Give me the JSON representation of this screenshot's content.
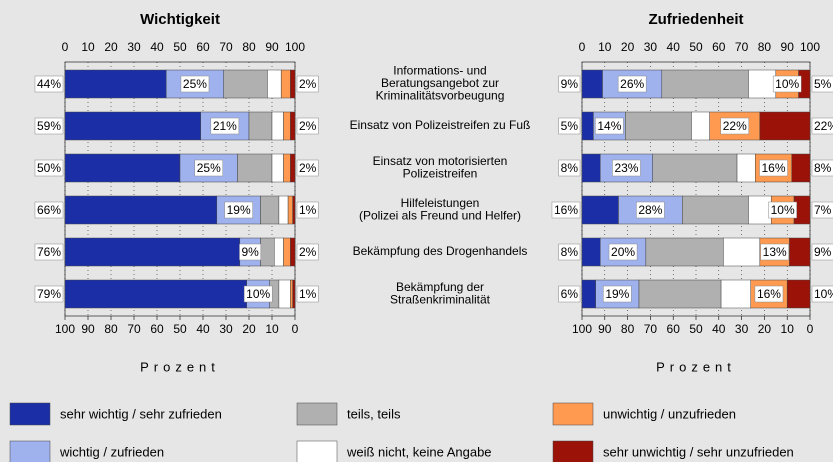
{
  "chart_data": [
    {
      "type": "bar",
      "title": "Wichtigkeit",
      "xlabel": "Prozent",
      "categories": [
        "Informations- und\nBeratungsangebot zur\nKriminalitätsvorbeugung",
        "Einsatz von Polizeistreifen zu Fuß",
        "Einsatz von motorisierten\nPolizeistreifen",
        "Hilfeleistungen\n(Polizei als Freund und Helfer)",
        "Bekämpfung des Drogenhandels",
        "Bekämpfung der\nStraßenkriminalität"
      ],
      "xlim": [
        0,
        100
      ],
      "xticks": [
        0,
        10,
        20,
        30,
        40,
        50,
        60,
        70,
        80,
        90,
        100
      ],
      "xticks_bottom": [
        {
          "value": 0,
          "label": "100"
        },
        {
          "value": 10,
          "label": "90"
        },
        {
          "value": 20,
          "label": "80"
        },
        {
          "value": 30,
          "label": "70"
        },
        {
          "value": 40,
          "label": "60"
        },
        {
          "value": 50,
          "label": "50"
        },
        {
          "value": 60,
          "label": "40"
        },
        {
          "value": 70,
          "label": "30"
        },
        {
          "value": 80,
          "label": "20"
        },
        {
          "value": 90,
          "label": "10"
        },
        {
          "value": 100,
          "label": "0"
        }
      ],
      "grid": true,
      "series": [
        {
          "name": "sehr wichtig / sehr zufrieden",
          "color": "#1b2ea6",
          "values": [
            44,
            59,
            50,
            66,
            76,
            79
          ],
          "value_labels": [
            "44%",
            "59%",
            "50%",
            "66%",
            "76%",
            "79%"
          ]
        },
        {
          "name": "wichtig / zufrieden",
          "color": "#9fb2ee",
          "values": [
            25,
            21,
            25,
            19,
            9,
            10
          ],
          "value_labels": [
            "25%",
            "21%",
            "25%",
            "19%",
            "9%",
            "10%"
          ]
        },
        {
          "name": "teils, teils",
          "color": "#b0b0b0",
          "values": [
            19,
            10,
            15,
            8,
            6,
            4
          ]
        },
        {
          "name": "weiß nicht, keine Angabe",
          "color": "#ffffff",
          "values": [
            6,
            5,
            5,
            4,
            4,
            5
          ]
        },
        {
          "name": "unwichtig / unzufrieden",
          "color": "#ff9a50",
          "values": [
            4,
            3,
            3,
            2,
            3,
            1
          ]
        },
        {
          "name": "sehr unwichtig / sehr unzufrieden",
          "color": "#9a1208",
          "values": [
            2,
            2,
            2,
            1,
            2,
            1
          ],
          "value_labels": [
            "2%",
            "2%",
            "2%",
            "1%",
            "2%",
            "1%"
          ]
        }
      ]
    },
    {
      "type": "bar",
      "title": "Zufriedenheit",
      "xlabel": "Prozent",
      "xlim": [
        0,
        100
      ],
      "xticks": [
        0,
        10,
        20,
        30,
        40,
        50,
        60,
        70,
        80,
        90,
        100
      ],
      "xticks_bottom": [
        {
          "value": 0,
          "label": "100"
        },
        {
          "value": 10,
          "label": "90"
        },
        {
          "value": 20,
          "label": "80"
        },
        {
          "value": 30,
          "label": "70"
        },
        {
          "value": 40,
          "label": "60"
        },
        {
          "value": 50,
          "label": "50"
        },
        {
          "value": 60,
          "label": "40"
        },
        {
          "value": 70,
          "label": "30"
        },
        {
          "value": 80,
          "label": "20"
        },
        {
          "value": 90,
          "label": "10"
        },
        {
          "value": 100,
          "label": "0"
        }
      ],
      "grid": true,
      "series": [
        {
          "color": "#1b2ea6",
          "values": [
            9,
            5,
            8,
            16,
            8,
            6
          ],
          "value_labels": [
            "9%",
            "5%",
            "8%",
            "16%",
            "8%",
            "6%"
          ]
        },
        {
          "color": "#9fb2ee",
          "values": [
            26,
            14,
            23,
            28,
            20,
            19
          ],
          "value_labels": [
            "26%",
            "14%",
            "23%",
            "28%",
            "20%",
            "19%"
          ]
        },
        {
          "color": "#b0b0b0",
          "values": [
            38,
            29,
            37,
            29,
            34,
            36
          ]
        },
        {
          "color": "#ffffff",
          "values": [
            12,
            8,
            8,
            10,
            16,
            13
          ]
        },
        {
          "color": "#ff9a50",
          "values": [
            10,
            22,
            16,
            10,
            13,
            16
          ],
          "value_labels": [
            "10%",
            "22%",
            "16%",
            "10%",
            "13%",
            "16%"
          ]
        },
        {
          "color": "#9a1208",
          "values": [
            5,
            22,
            8,
            7,
            9,
            10
          ],
          "value_labels": [
            "5%",
            "22%",
            "8%",
            "7%",
            "9%",
            "10%"
          ]
        }
      ]
    }
  ]
}
